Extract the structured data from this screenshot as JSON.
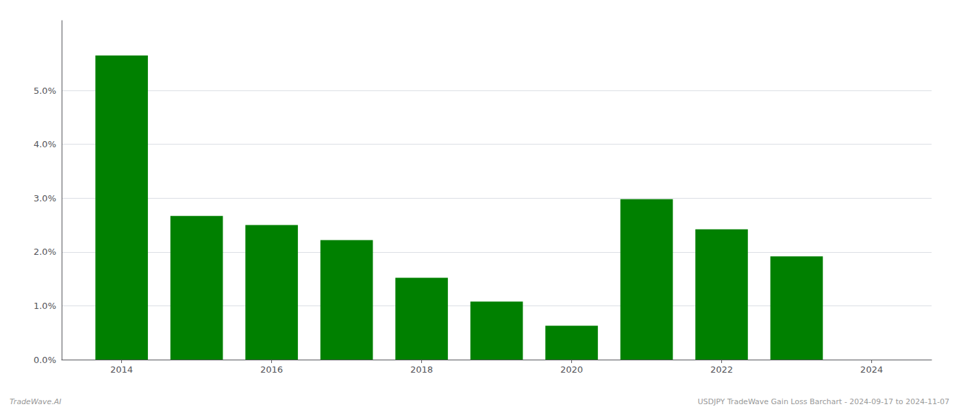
{
  "chart_data": {
    "type": "bar",
    "x": [
      2014,
      2015,
      2016,
      2017,
      2018,
      2019,
      2020,
      2021,
      2022,
      2023
    ],
    "values": [
      0.0565,
      0.0267,
      0.025,
      0.0222,
      0.0152,
      0.0108,
      0.0063,
      0.0298,
      0.0242,
      0.0192
    ],
    "color": "#008000",
    "xlim": [
      2013.2,
      2024.8
    ],
    "xticks": [
      2014,
      2016,
      2018,
      2020,
      2022,
      2024
    ],
    "ylim": [
      0,
      0.063
    ],
    "yticks": [
      {
        "value": 0.0,
        "label": "0.0%"
      },
      {
        "value": 0.01,
        "label": "1.0%"
      },
      {
        "value": 0.02,
        "label": "2.0%"
      },
      {
        "value": 0.03,
        "label": "3.0%"
      },
      {
        "value": 0.04,
        "label": "4.0%"
      },
      {
        "value": 0.05,
        "label": "5.0%"
      }
    ],
    "grid": true,
    "annotations": [
      {
        "text": "TradeWave.AI"
      },
      {
        "text": "USDJPY TradeWave Gain Loss Barchart - 2024-09-17 to 2024-11-07"
      }
    ]
  }
}
